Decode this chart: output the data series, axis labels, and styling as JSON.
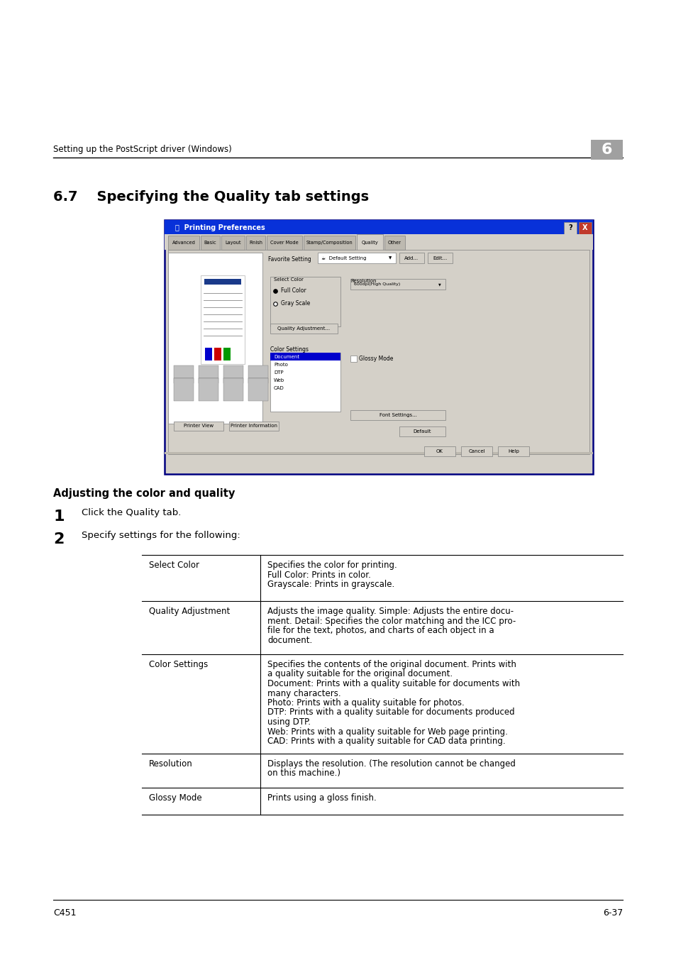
{
  "bg_color": "#ffffff",
  "header_text": "Setting up the PostScript driver (Windows)",
  "header_number": "6",
  "header_number_bg": "#a0a0a0",
  "section_number": "6.7",
  "section_title": "Specifying the Quality tab settings",
  "subsection_title": "Adjusting the color and quality",
  "step1_num": "1",
  "step1_text": "Click the Quality tab.",
  "step2_num": "2",
  "step2_text": "Specify settings for the following:",
  "table_rows": [
    {
      "label": "Select Color",
      "description": "Specifies the color for printing.\nFull Color: Prints in color.\nGrayscale: Prints in grayscale."
    },
    {
      "label": "Quality Adjustment",
      "description": "Adjusts the image quality. Simple: Adjusts the entire docu-\nment. Detail: Specifies the color matching and the ICC pro-\nfile for the text, photos, and charts of each object in a\ndocument."
    },
    {
      "label": "Color Settings",
      "description": "Specifies the contents of the original document. Prints with\na quality suitable for the original document.\nDocument: Prints with a quality suitable for documents with\nmany characters.\nPhoto: Prints with a quality suitable for photos.\nDTP: Prints with a quality suitable for documents produced\nusing DTP.\nWeb: Prints with a quality suitable for Web page printing.\nCAD: Prints with a quality suitable for CAD data printing."
    },
    {
      "label": "Resolution",
      "description": "Displays the resolution. (The resolution cannot be changed\non this machine.)"
    },
    {
      "label": "Glossy Mode",
      "description": "Prints using a gloss finish."
    }
  ],
  "footer_left": "C451",
  "footer_right": "6-37"
}
